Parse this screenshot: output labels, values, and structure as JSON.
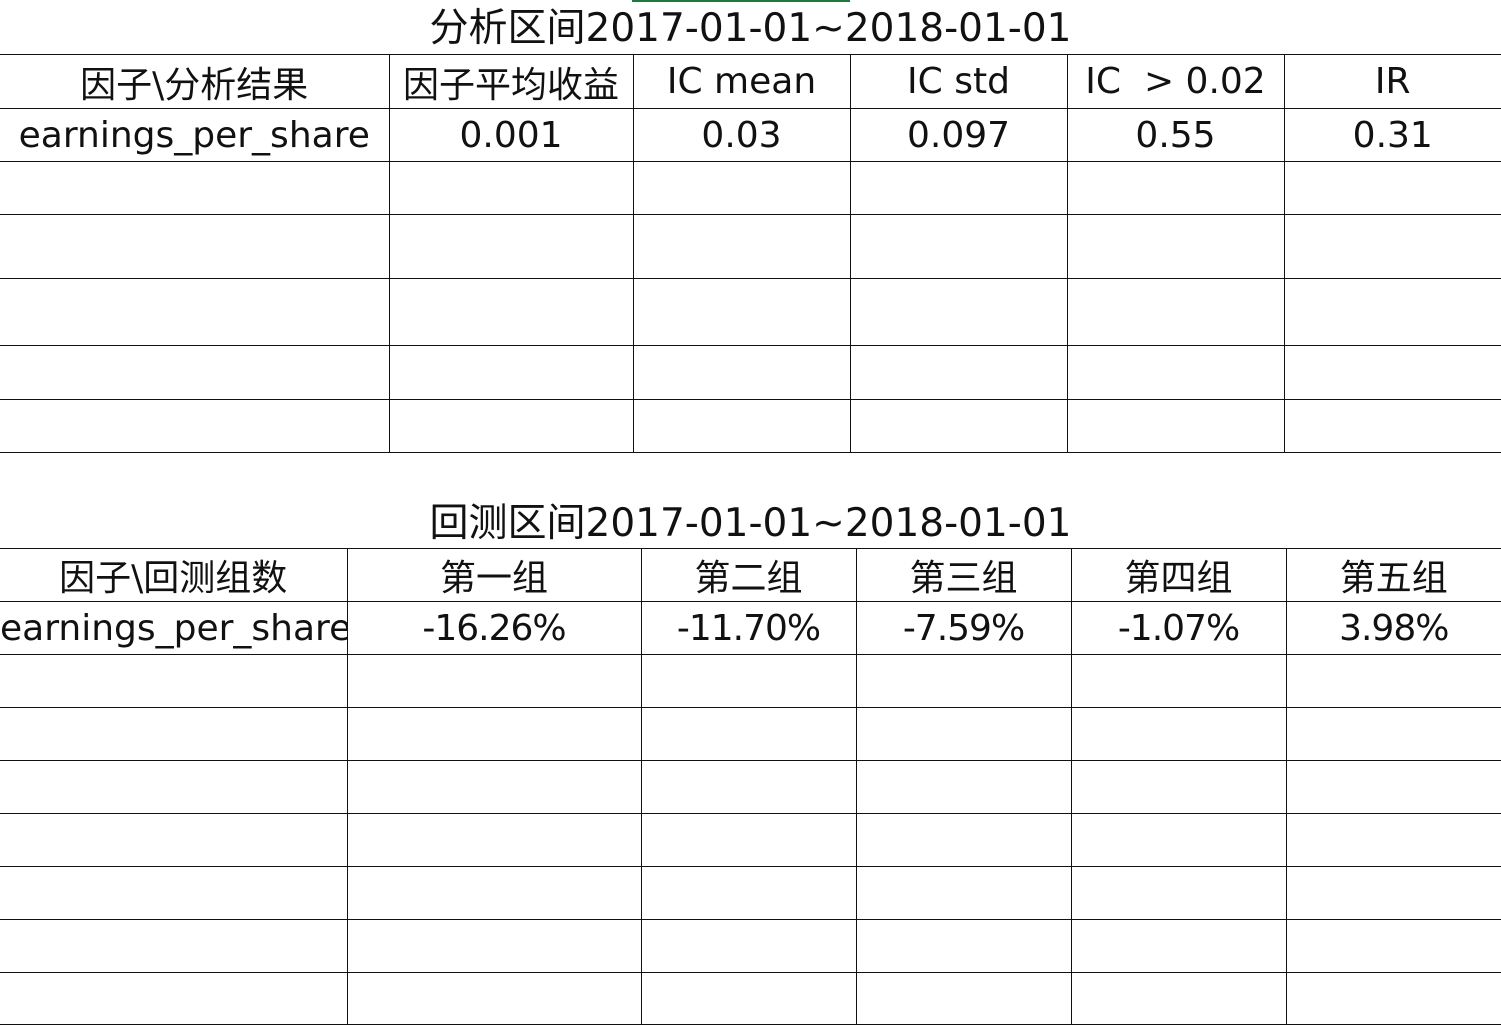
{
  "analysis": {
    "title": "分析区间2017-01-01~2018-01-01",
    "headers": [
      "因子\\分析结果",
      "因子平均收益",
      "IC mean",
      "IC std",
      "IC  > 0.02",
      "IR"
    ],
    "rows": [
      [
        "earnings_per_share",
        "0.001",
        "0.03",
        "0.097",
        "0.55",
        "0.31"
      ]
    ]
  },
  "backtest": {
    "title": "回测区间2017-01-01~2018-01-01",
    "headers": [
      "因子\\回测组数",
      "第一组",
      "第二组",
      "第三组",
      "第四组",
      "第五组"
    ],
    "rows": [
      [
        "earnings_per_share",
        "-16.26%",
        "-11.70%",
        "-7.59%",
        "-1.07%",
        "3.98%"
      ]
    ]
  }
}
